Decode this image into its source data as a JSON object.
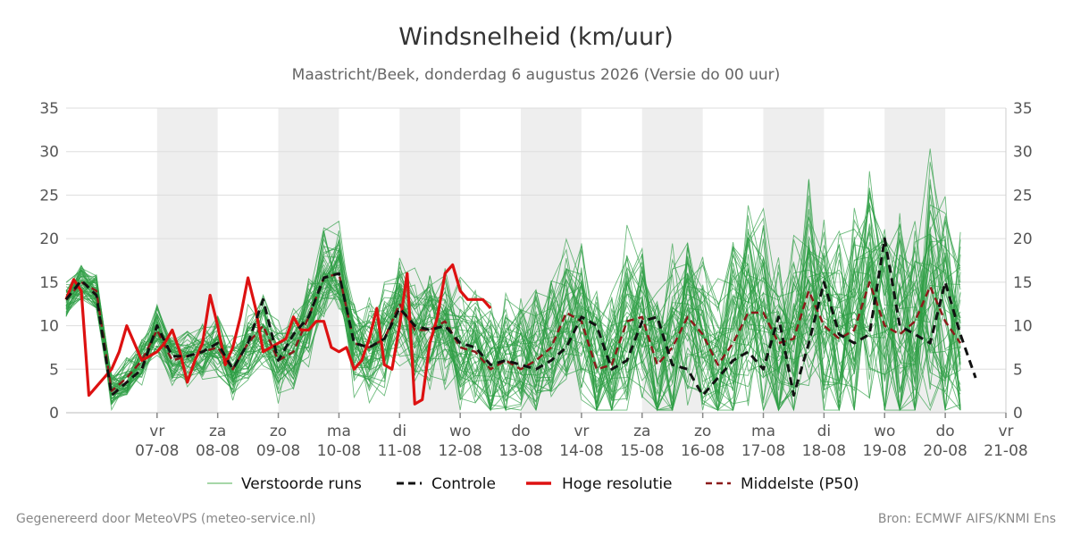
{
  "chart_data": {
    "type": "line",
    "title": "Windsnelheid (km/uur)",
    "subtitle": "Maastricht/Beek, donderdag  6 augustus 2026 (Versie do 00 uur)",
    "ylim": [
      0,
      35
    ],
    "yticks": [
      0,
      5,
      10,
      15,
      20,
      25,
      30,
      35
    ],
    "x_domain_days": [
      -1.5,
      14
    ],
    "x_ticks": [
      {
        "day": "vr",
        "date": "07-08"
      },
      {
        "day": "za",
        "date": "08-08"
      },
      {
        "day": "zo",
        "date": "09-08"
      },
      {
        "day": "ma",
        "date": "10-08"
      },
      {
        "day": "di",
        "date": "11-08"
      },
      {
        "day": "wo",
        "date": "12-08"
      },
      {
        "day": "do",
        "date": "13-08"
      },
      {
        "day": "vr",
        "date": "14-08"
      },
      {
        "day": "za",
        "date": "15-08"
      },
      {
        "day": "zo",
        "date": "16-08"
      },
      {
        "day": "ma",
        "date": "17-08"
      },
      {
        "day": "di",
        "date": "18-08"
      },
      {
        "day": "wo",
        "date": "19-08"
      },
      {
        "day": "do",
        "date": "20-08"
      },
      {
        "day": "vr",
        "date": "21-08"
      }
    ],
    "shaded_days": [
      0,
      2,
      4,
      6,
      8,
      10,
      12
    ],
    "grid": true,
    "legend_position": "bottom",
    "x_step_days": 0.25,
    "hires_x_step_days": 0.125,
    "series": [
      {
        "name": "Controle",
        "color": "#111111",
        "style": "dashed",
        "values": [
          13,
          15.2,
          13.5,
          2,
          3.5,
          5,
          10,
          6.5,
          6.5,
          7,
          8,
          5,
          8,
          13,
          6,
          9,
          11,
          15.5,
          16,
          8,
          7.5,
          8.5,
          12,
          10,
          9.5,
          10,
          8,
          7.5,
          5.5,
          6,
          5.5,
          5,
          6,
          7.5,
          11,
          10,
          5,
          6,
          10.5,
          11,
          5.5,
          5,
          2,
          4,
          6,
          7,
          5,
          11,
          2,
          8,
          15,
          9,
          8,
          9,
          20,
          10,
          9,
          8,
          15,
          9,
          4
        ]
      },
      {
        "name": "Hoge resolutie",
        "color": "#dd1111",
        "style": "solid",
        "values": [
          13,
          15.3,
          14,
          2,
          3,
          4,
          5,
          7,
          10,
          8,
          6,
          6.5,
          7,
          8,
          9.5,
          7,
          3.5,
          6,
          8,
          13.5,
          10,
          5.5,
          7.5,
          11,
          15.5,
          12,
          7,
          7.5,
          8,
          8.5,
          11,
          9.5,
          9.5,
          10.5,
          10.5,
          7.5,
          7,
          7.5,
          5,
          6,
          8.5,
          12,
          5.5,
          5,
          10,
          16,
          1,
          1.5,
          8,
          11,
          16,
          17,
          14,
          13,
          13,
          13,
          12
        ]
      },
      {
        "name": "Middelste (P50)",
        "color": "#8b1a1a",
        "style": "dashed",
        "values": [
          13,
          15,
          14,
          2.5,
          4,
          6,
          9.5,
          6,
          6.5,
          7,
          7.5,
          5,
          8,
          10,
          6,
          7,
          11,
          15.5,
          16,
          8,
          7.5,
          8.5,
          12.5,
          9.5,
          9.5,
          10.5,
          7.5,
          7,
          5,
          6,
          5,
          6,
          7.5,
          11.5,
          10.5,
          5,
          5.5,
          10.5,
          11,
          5.5,
          7.5,
          11,
          9,
          5.5,
          8,
          11.5,
          11.5,
          8,
          8.5,
          14,
          10,
          8.5,
          9.5,
          15,
          10,
          9,
          10.5,
          14.5,
          10.5,
          8
        ]
      }
    ],
    "ensemble_name": "Verstoorde runs",
    "ensemble_color": "#2e9e45",
    "ensemble_member_count": 50
  },
  "legend": {
    "items": [
      {
        "label": "Verstoorde runs",
        "color": "#4caf50",
        "style": "thin"
      },
      {
        "label": "Controle",
        "color": "#111111",
        "style": "dashed"
      },
      {
        "label": "Hoge resolutie",
        "color": "#dd1111",
        "style": "solid"
      },
      {
        "label": "Middelste (P50)",
        "color": "#8b1a1a",
        "style": "dashed"
      }
    ]
  },
  "footer": {
    "left": "Gegenereerd door MeteoVPS (meteo-service.nl)",
    "right": "Bron: ECMWF AIFS/KNMI Ens"
  }
}
